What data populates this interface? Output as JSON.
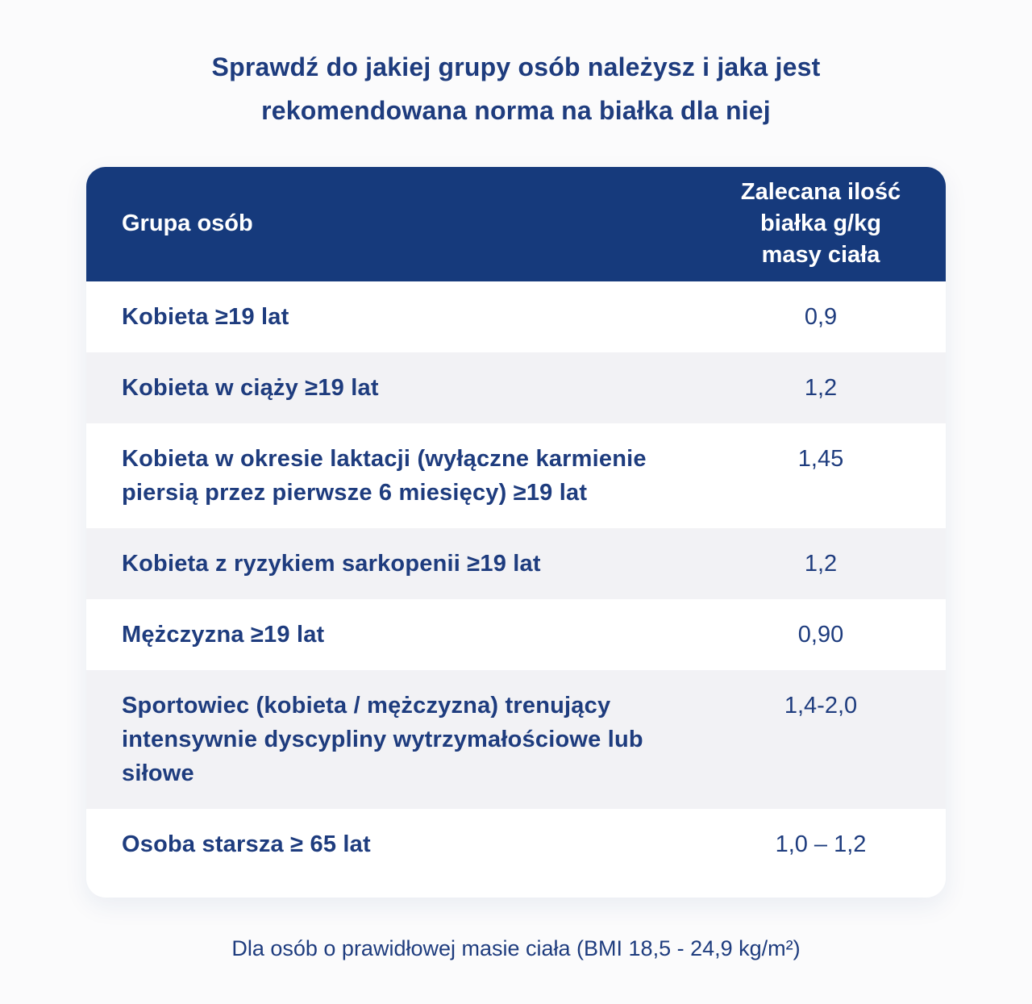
{
  "title": {
    "line1": "Sprawdź do jakiej grupy osób należysz i jaka jest",
    "line2": "rekomendowana norma na białka dla niej"
  },
  "colors": {
    "header_bg": "#163a7c",
    "header_text": "#ffffff",
    "row_text": "#1e3c7e",
    "row_bg": "#ffffff",
    "row_alt_bg": "#f2f2f5",
    "page_bg": "#fbfbfc"
  },
  "chart_data": {
    "type": "table",
    "title": "Sprawdź do jakiej grupy osób należysz i jaka jest rekomendowana norma na białka dla niej",
    "columns": [
      "Grupa osób",
      "Zalecana ilość białka g/kg masy ciała"
    ],
    "header": {
      "group": "Grupa osób",
      "amount_lines": [
        "Zalecana ilość",
        "białka g/kg",
        "masy ciała"
      ]
    },
    "rows": [
      {
        "group": "Kobieta ≥19 lat",
        "value": "0,9"
      },
      {
        "group": "Kobieta w ciąży ≥19 lat",
        "value": "1,2"
      },
      {
        "group": "Kobieta w okresie laktacji (wyłączne karmienie piersią przez pierwsze 6 miesięcy) ≥19 lat",
        "value": "1,45"
      },
      {
        "group": "Kobieta z ryzykiem sarkopenii ≥19 lat",
        "value": "1,2"
      },
      {
        "group": "Mężczyzna ≥19 lat",
        "value": "0,90"
      },
      {
        "group": "Sportowiec (kobieta / mężczyzna) trenujący intensywnie dyscypliny wytrzymałościowe lub siłowe",
        "value": "1,4-2,0"
      },
      {
        "group": "Osoba starsza ≥ 65 lat",
        "value": "1,0 – 1,2"
      }
    ],
    "note": "Dla osób o prawidłowej masie ciała (BMI 18,5 - 24,9 kg/m²)"
  }
}
